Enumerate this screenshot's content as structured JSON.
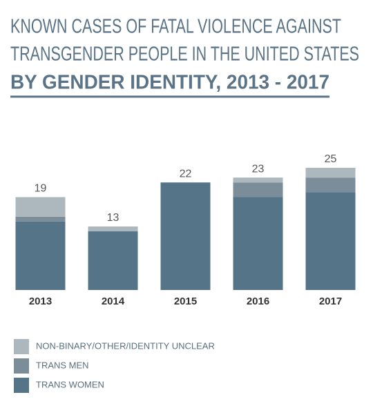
{
  "chart_data": {
    "type": "stacked-bar",
    "title": [
      "KNOWN CASES OF FATAL VIOLENCE AGAINST",
      "TRANSGENDER PEOPLE IN THE UNITED STATES"
    ],
    "subtitle": "BY GENDER IDENTITY, 2013 - 2017",
    "categories": [
      "2013",
      "2014",
      "2015",
      "2016",
      "2017"
    ],
    "series": [
      {
        "name": "TRANS WOMEN",
        "color": "#557487",
        "values": [
          14,
          12,
          22,
          19,
          20
        ]
      },
      {
        "name": "TRANS MEN",
        "color": "#7a8d98",
        "values": [
          1,
          0,
          0,
          3,
          3
        ]
      },
      {
        "name": "NON-BINARY/OTHER/IDENTITY UNCLEAR",
        "color": "#adb8be",
        "values": [
          4,
          1,
          0,
          1,
          2
        ]
      }
    ],
    "totals": [
      19,
      13,
      22,
      23,
      25
    ]
  }
}
